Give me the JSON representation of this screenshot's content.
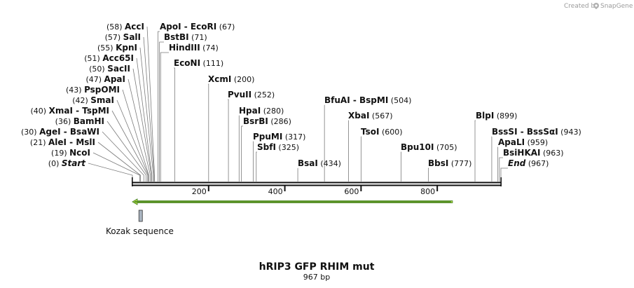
{
  "header": {
    "credit_text": "Created by",
    "credit_brand": "SnapGene"
  },
  "map": {
    "title": "hRIP3 GFP RHIM mut",
    "length_label": "967 bp",
    "length": 967,
    "tick_values": [
      200,
      400,
      600,
      800
    ]
  },
  "enzymes": [
    {
      "pos": 58,
      "name": "AccI",
      "side": "right"
    },
    {
      "pos": 57,
      "name": "SalI",
      "side": "right"
    },
    {
      "pos": 55,
      "name": "KpnI",
      "side": "right"
    },
    {
      "pos": 51,
      "name": "Acc65I",
      "side": "right"
    },
    {
      "pos": 50,
      "name": "SacII",
      "side": "right"
    },
    {
      "pos": 47,
      "name": "ApaI",
      "side": "right"
    },
    {
      "pos": 43,
      "name": "PspOMI",
      "side": "right"
    },
    {
      "pos": 42,
      "name": "SmaI",
      "side": "right"
    },
    {
      "pos": 40,
      "name": "XmaI",
      "name2": "TspMI",
      "side": "right"
    },
    {
      "pos": 36,
      "name": "BamHI",
      "side": "right"
    },
    {
      "pos": 30,
      "name": "AgeI",
      "name2": "BsaWI",
      "side": "right"
    },
    {
      "pos": 21,
      "name": "AleI",
      "name2": "MslI",
      "side": "right"
    },
    {
      "pos": 19,
      "name": "NcoI",
      "side": "right"
    },
    {
      "pos": 0,
      "name": "Start",
      "side": "right",
      "italic": true
    },
    {
      "pos": 67,
      "name": "ApoI",
      "name2": "EcoRI",
      "side": "left"
    },
    {
      "pos": 71,
      "name": "BstBI",
      "side": "left"
    },
    {
      "pos": 74,
      "name": "HindIII",
      "side": "left"
    },
    {
      "pos": 111,
      "name": "EcoNI",
      "side": "left"
    },
    {
      "pos": 200,
      "name": "XcmI",
      "side": "left"
    },
    {
      "pos": 252,
      "name": "PvuII",
      "side": "left"
    },
    {
      "pos": 280,
      "name": "HpaI",
      "side": "left"
    },
    {
      "pos": 286,
      "name": "BsrBI",
      "side": "left"
    },
    {
      "pos": 317,
      "name": "PpuMI",
      "side": "left"
    },
    {
      "pos": 325,
      "name": "SbfI",
      "side": "left"
    },
    {
      "pos": 434,
      "name": "BsaI",
      "side": "left"
    },
    {
      "pos": 504,
      "name": "BfuAI",
      "name2": "BspMI",
      "side": "left"
    },
    {
      "pos": 567,
      "name": "XbaI",
      "side": "left"
    },
    {
      "pos": 600,
      "name": "TsoI",
      "side": "left"
    },
    {
      "pos": 705,
      "name": "Bpu10I",
      "side": "left"
    },
    {
      "pos": 777,
      "name": "BbsI",
      "side": "left"
    },
    {
      "pos": 899,
      "name": "BlpI",
      "side": "left"
    },
    {
      "pos": 943,
      "name": "BssSI",
      "name2": "BssSαI",
      "side": "left"
    },
    {
      "pos": 959,
      "name": "ApaLI",
      "side": "left"
    },
    {
      "pos": 963,
      "name": "BsiHKAI",
      "side": "left"
    },
    {
      "pos": 967,
      "name": "End",
      "side": "left",
      "italic": true
    }
  ],
  "features": [
    {
      "name": "GFP",
      "type": "arrow",
      "start": 0,
      "end": 840,
      "direction": "reverse",
      "color": "#b5e04a",
      "stroke": "#3d7a1a",
      "label": ""
    },
    {
      "name": "Kozak sequence",
      "type": "box",
      "start": 17,
      "end": 26,
      "color": "#a9b4c0",
      "stroke": "#333333",
      "label": "Kozak sequence"
    }
  ],
  "colors": {
    "backbone": "#111111",
    "leader": "#7a7a7a",
    "gfp_fill": "#b5e04a"
  }
}
